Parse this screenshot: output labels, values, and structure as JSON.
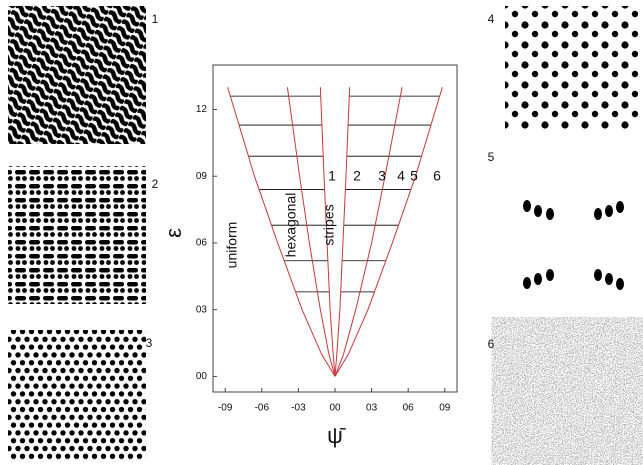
{
  "chart_data": {
    "type": "line",
    "xlabel": "ψ̄",
    "ylabel": "ε",
    "xlim": [
      -1.0,
      1.0
    ],
    "ylim": [
      -0.07,
      1.4
    ],
    "xticks": [
      {
        "value": -0.9,
        "label": "-09"
      },
      {
        "value": -0.6,
        "label": "-06"
      },
      {
        "value": -0.3,
        "label": "-03"
      },
      {
        "value": 0,
        "label": "00"
      },
      {
        "value": 0.3,
        "label": "03"
      },
      {
        "value": 0.6,
        "label": "06"
      },
      {
        "value": 0.9,
        "label": "09"
      }
    ],
    "yticks": [
      {
        "value": 0,
        "label": "00"
      },
      {
        "value": 0.3,
        "label": "03"
      },
      {
        "value": 0.6,
        "label": "06"
      },
      {
        "value": 0.9,
        "label": "09"
      },
      {
        "value": 1.2,
        "label": "12"
      }
    ],
    "series": [
      {
        "color": "#d0343a",
        "x": [
          0,
          -0.11,
          -0.27,
          -0.47,
          -0.66,
          -0.88
        ],
        "values": [
          0,
          0.1,
          0.3,
          0.6,
          0.9,
          1.3
        ]
      },
      {
        "color": "#d0343a",
        "x": [
          0,
          -0.05,
          -0.12,
          -0.21,
          -0.29,
          -0.39
        ],
        "values": [
          0,
          0.1,
          0.3,
          0.6,
          0.9,
          1.3
        ]
      },
      {
        "color": "#d0343a",
        "x": [
          0,
          -0.015,
          -0.04,
          -0.065,
          -0.09,
          -0.12
        ],
        "values": [
          0,
          0.1,
          0.3,
          0.6,
          0.9,
          1.3
        ]
      },
      {
        "color": "#d0343a",
        "x": [
          0,
          0.015,
          0.04,
          0.065,
          0.09,
          0.12
        ],
        "values": [
          0,
          0.1,
          0.3,
          0.6,
          0.9,
          1.3
        ]
      },
      {
        "color": "#d0343a",
        "x": [
          0,
          0.07,
          0.17,
          0.3,
          0.41,
          0.55
        ],
        "values": [
          0,
          0.1,
          0.3,
          0.6,
          0.9,
          1.3
        ]
      },
      {
        "color": "#d0343a",
        "x": [
          0,
          0.11,
          0.27,
          0.47,
          0.66,
          0.88
        ],
        "values": [
          0,
          0.1,
          0.3,
          0.6,
          0.9,
          1.3
        ]
      }
    ],
    "tie_levels": [
      1.26,
      1.13,
      0.99,
      0.84,
      0.68,
      0.52,
      0.38
    ],
    "annotations": [
      "uniform",
      "hexagonal",
      "stripes",
      "1",
      "2",
      "3",
      "4",
      "5",
      "6"
    ],
    "panels": [
      "1",
      "2",
      "3",
      "4",
      "5",
      "6"
    ]
  }
}
